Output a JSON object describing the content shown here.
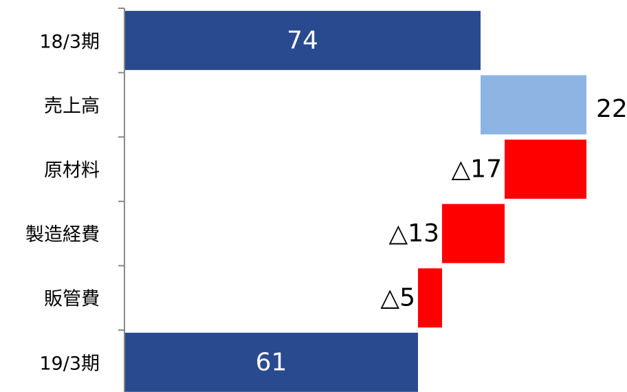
{
  "chart_data": {
    "type": "bar",
    "orientation": "horizontal",
    "subtype": "waterfall",
    "categories": [
      "18/3期",
      "売上高",
      "原材料",
      "製造経費",
      "販管費",
      "19/3期"
    ],
    "values": [
      74,
      22,
      -17,
      -13,
      -5,
      61
    ],
    "kinds": [
      "total",
      "increase",
      "decrease",
      "decrease",
      "decrease",
      "total"
    ],
    "data_labels": [
      "74",
      "22",
      "△17",
      "△13",
      "△5",
      "61"
    ],
    "title": "",
    "xlabel": "",
    "ylabel": "",
    "xlim": [
      0,
      104
    ],
    "grid": false,
    "legend": "none",
    "colors": {
      "total": "#294a8f",
      "increase": "#8eb4e3",
      "decrease": "#ff0000",
      "total_label": "#ffffff",
      "delta_label": "#000000"
    }
  }
}
